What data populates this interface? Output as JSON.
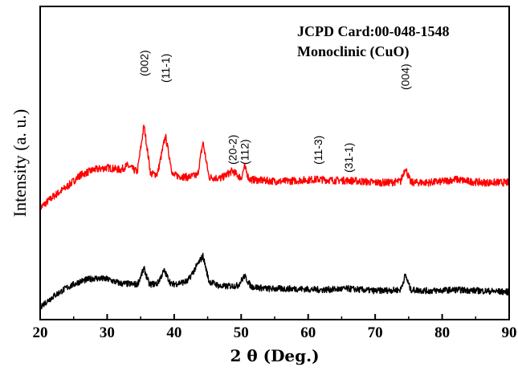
{
  "chart_data": {
    "type": "line",
    "title": "",
    "xlabel": "2 θ (Deg.)",
    "ylabel": "Intensity (a. u.)",
    "xlim": [
      20,
      90
    ],
    "x_ticks": [
      "20",
      "30",
      "40",
      "50",
      "60",
      "70",
      "80",
      "90"
    ],
    "y_ticks_visible": false,
    "grid": false,
    "annotations": {
      "card": "JCPD Card:00-048-1548",
      "phase": "Monoclinic (CuO)"
    },
    "peak_labels": [
      {
        "text": "(002)",
        "x": 35.5
      },
      {
        "text": "(11-1)",
        "x": 38.7
      },
      {
        "text": "(20-2)",
        "x": 48.7
      },
      {
        "text": "(112)",
        "x": 50.5
      },
      {
        "text": "(11-3)",
        "x": 61.5
      },
      {
        "text": "(31-1)",
        "x": 66.0
      },
      {
        "text": "(004)",
        "x": 74.5
      }
    ],
    "series": [
      {
        "color": "#ff0000",
        "noise": 0.035,
        "x": [
          20,
          22,
          24,
          26,
          28,
          30,
          32,
          33,
          34.5,
          35.5,
          36.5,
          37.5,
          38.7,
          39.8,
          42,
          43.5,
          44.3,
          45.2,
          47,
          48.7,
          50,
          50.5,
          51.2,
          53,
          56,
          58.5,
          61.5,
          64,
          66,
          68,
          70,
          72,
          73.8,
          74.5,
          75.3,
          78,
          80,
          82,
          84,
          86,
          88,
          90
        ],
        "values": [
          0.22,
          0.33,
          0.42,
          0.53,
          0.58,
          0.6,
          0.58,
          0.62,
          0.56,
          1.0,
          0.54,
          0.54,
          0.9,
          0.53,
          0.51,
          0.53,
          0.84,
          0.51,
          0.5,
          0.57,
          0.5,
          0.61,
          0.49,
          0.48,
          0.47,
          0.48,
          0.49,
          0.48,
          0.48,
          0.47,
          0.46,
          0.46,
          0.47,
          0.6,
          0.46,
          0.46,
          0.47,
          0.49,
          0.47,
          0.46,
          0.46,
          0.46
        ]
      },
      {
        "color": "#000000",
        "noise": 0.03,
        "x": [
          20,
          22,
          24,
          26,
          28,
          30,
          32,
          34.5,
          35.5,
          36.3,
          37.5,
          38.5,
          39.6,
          42,
          43.5,
          44.3,
          45.2,
          47,
          49.5,
          50.5,
          51.5,
          54,
          58,
          62,
          66,
          70,
          73.8,
          74.5,
          75.3,
          78,
          82,
          86,
          90
        ],
        "values": [
          0.0,
          0.1,
          0.18,
          0.24,
          0.27,
          0.26,
          0.22,
          0.21,
          0.36,
          0.21,
          0.22,
          0.34,
          0.21,
          0.24,
          0.4,
          0.48,
          0.24,
          0.19,
          0.2,
          0.29,
          0.19,
          0.17,
          0.17,
          0.16,
          0.17,
          0.15,
          0.16,
          0.3,
          0.16,
          0.15,
          0.16,
          0.15,
          0.14
        ]
      }
    ]
  }
}
